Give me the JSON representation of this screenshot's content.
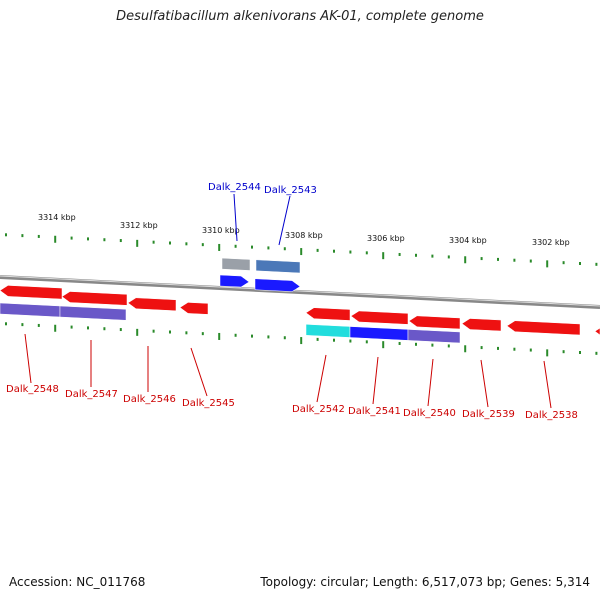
{
  "title": "Desulfatibacillum alkenivorans AK-01, complete genome",
  "footer": {
    "accession": "Accession: NC_011768",
    "summary": "Topology: circular; Length: 6,517,073 bp; Genes: 5,314"
  },
  "colors": {
    "forward_cds": "#1a1aff",
    "forward_other": "#9aa0a8",
    "forward_steel": "#4b78b8",
    "reverse_cds": "#ee1111",
    "reverse_purple": "#6a58c8",
    "reverse_cyan": "#22dddd",
    "backbone": "#888888",
    "ticks": "#2a8a2a",
    "forward_label": "#0000cc",
    "reverse_label": "#cc0000"
  },
  "scale_labels": [
    "3314 kbp",
    "3312 kbp",
    "3310 kbp",
    "3308 kbp",
    "3306 kbp",
    "3304 kbp",
    "3302 kbp"
  ],
  "genes_forward": [
    {
      "label": "Dalk_2544"
    },
    {
      "label": "Dalk_2543"
    }
  ],
  "genes_reverse": [
    {
      "label": "Dalk_2548"
    },
    {
      "label": "Dalk_2547"
    },
    {
      "label": "Dalk_2546"
    },
    {
      "label": "Dalk_2545"
    },
    {
      "label": "Dalk_2542"
    },
    {
      "label": "Dalk_2541"
    },
    {
      "label": "Dalk_2540"
    },
    {
      "label": "Dalk_2539"
    },
    {
      "label": "Dalk_2538"
    }
  ]
}
